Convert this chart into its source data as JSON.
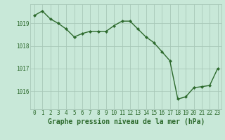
{
  "x": [
    0,
    1,
    2,
    3,
    4,
    5,
    6,
    7,
    8,
    9,
    10,
    11,
    12,
    13,
    14,
    15,
    16,
    17,
    18,
    19,
    20,
    21,
    22,
    23
  ],
  "y": [
    1019.35,
    1019.55,
    1019.2,
    1019.0,
    1018.75,
    1018.4,
    1018.55,
    1018.65,
    1018.65,
    1018.65,
    1018.9,
    1019.1,
    1019.1,
    1018.75,
    1018.4,
    1018.15,
    1017.75,
    1017.35,
    1015.65,
    1015.75,
    1016.15,
    1016.2,
    1016.25,
    1017.0
  ],
  "line_color": "#2d6a2d",
  "marker": "D",
  "marker_size": 2.2,
  "line_width": 1.0,
  "bg_color": "#c8e8d8",
  "grid_color": "#a8c8b8",
  "ylabel_ticks": [
    1016,
    1017,
    1018,
    1019
  ],
  "xlabel_ticks": [
    0,
    1,
    2,
    3,
    4,
    5,
    6,
    7,
    8,
    9,
    10,
    11,
    12,
    13,
    14,
    15,
    16,
    17,
    18,
    19,
    20,
    21,
    22,
    23
  ],
  "tick_label_color": "#2d6a2d",
  "tick_label_size": 5.5,
  "xlabel": "Graphe pression niveau de la mer (hPa)",
  "xlabel_size": 7.0,
  "ylim": [
    1015.2,
    1019.85
  ],
  "xlim": [
    -0.5,
    23.5
  ]
}
